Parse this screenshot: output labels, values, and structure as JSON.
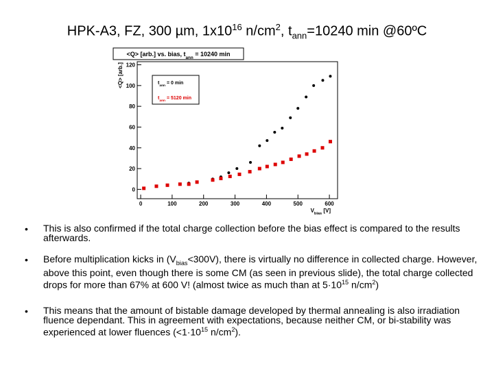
{
  "title_parts": [
    "HPK-A3, FZ, 300 µm, 1x10",
    {
      "sup": "16"
    },
    " n/cm",
    {
      "sup": "2"
    },
    ", t",
    {
      "sub": "ann"
    },
    "=10240 min @60ºC"
  ],
  "chart_data": {
    "type": "scatter",
    "title_parts": [
      "<Q> [arb.] vs. bias, t",
      {
        "sub": "ann"
      },
      " = 10240 min"
    ],
    "y_label": "<Q> [arb.]",
    "x_label_parts": [
      "V",
      {
        "sub": "bias"
      },
      " [V]"
    ],
    "xlim": [
      -11,
      626
    ],
    "ylim": [
      -9,
      123
    ],
    "xticks": [
      0,
      100,
      200,
      300,
      400,
      500,
      600
    ],
    "yticks": [
      0,
      20,
      40,
      60,
      80,
      100,
      120
    ],
    "series": [
      {
        "name_parts": [
          "t",
          {
            "sub": "ann"
          },
          " = 0 min"
        ],
        "color": "#000000",
        "marker": "circle",
        "x": [
          10,
          50,
          85,
          125,
          153,
          179,
          229,
          255,
          280,
          306,
          349,
          378,
          402,
          426,
          450,
          476,
          500,
          526,
          550,
          579,
          603
        ],
        "values": [
          1,
          3,
          4,
          5,
          6,
          7,
          10,
          12,
          16,
          20,
          26,
          42,
          47,
          55,
          59,
          69,
          78,
          89,
          100,
          105,
          109
        ]
      },
      {
        "name_parts": [
          "t",
          {
            "sub": "ann"
          },
          " = 5120 min"
        ],
        "color": "#dd0000",
        "marker": "square",
        "x": [
          10,
          50,
          85,
          125,
          153,
          179,
          229,
          255,
          284,
          314,
          347,
          378,
          402,
          428,
          452,
          478,
          504,
          528,
          552,
          578,
          603
        ],
        "values": [
          1,
          3,
          4,
          5,
          5,
          7,
          9,
          10.5,
          12.5,
          14.5,
          17,
          20,
          22,
          24,
          26,
          29,
          32,
          34,
          37,
          40,
          46
        ]
      }
    ]
  },
  "bullets": [
    [
      "This is also confirmed if the total charge collection before the bias effect is compared to the results afterwards."
    ],
    [
      "Before multiplication kicks in (V",
      {
        "sub": "bias"
      },
      "<300V), there is virtually no difference in collected charge. However, above this point, even though there is some CM (as seen in previous slide), the total charge collected drops for more than 67% at 600 V! (almost twice as much than at 5·10",
      {
        "sup": "15"
      },
      " n/cm",
      {
        "sup": "2"
      },
      ")"
    ],
    [
      "This means that the amount of bistable damage developed by thermal annealing is also irradiation fluence dependant. This in agreement with expectations, because neither CM, or bi-stability was experienced at lower fluences (<1·10",
      {
        "sup": "15"
      },
      " n/cm",
      {
        "sup": "2"
      },
      ")."
    ]
  ]
}
